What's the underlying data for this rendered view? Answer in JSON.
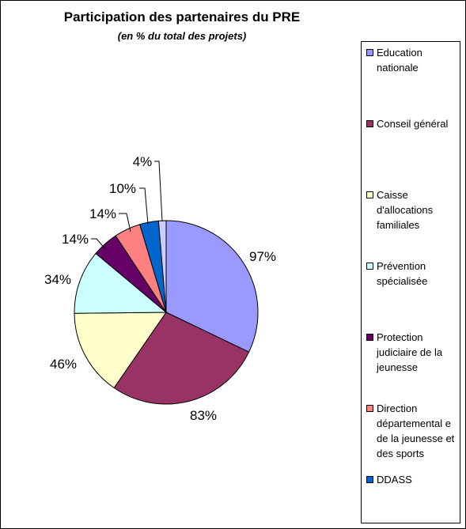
{
  "chart_data": {
    "type": "pie",
    "title": "Participation des partenaires du PRE",
    "subtitle": "(en % du total des projets)",
    "legend_position": "right",
    "slices": [
      {
        "name": "Education nationale",
        "value": 97,
        "label": "97%",
        "color": "#9999ff"
      },
      {
        "name": "Conseil général",
        "value": 83,
        "label": "83%",
        "color": "#993366"
      },
      {
        "name": "Caisse d'allocations familiales",
        "value": 46,
        "label": "46%",
        "color": "#ffffcc"
      },
      {
        "name": "Prévention spécialisée",
        "value": 34,
        "label": "34%",
        "color": "#ccffff"
      },
      {
        "name": "Protection judiciaire de la jeunesse",
        "value": 14,
        "label": "14%",
        "color": "#660066"
      },
      {
        "name": "Direction départemental e de la jeunesse et des sports",
        "value": 14,
        "label": "14%",
        "color": "#ff8080"
      },
      {
        "name": "DDASS",
        "value": 10,
        "label": "10%",
        "color": "#0066cc"
      },
      {
        "name": "",
        "value": 4,
        "label": "4%",
        "color": "#ccccff"
      }
    ]
  }
}
